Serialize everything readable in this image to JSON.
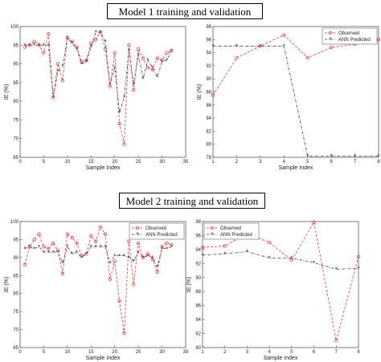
{
  "sections": [
    {
      "title": "Model 1 training and validation"
    },
    {
      "title": "Model 2 training and validation"
    }
  ],
  "colors": {
    "observed": "#e8303a",
    "predicted": "#333333"
  },
  "chart_data": [
    {
      "id": "m1-train",
      "type": "line",
      "xlabel": "Sample Index",
      "ylabel": "IE (%)",
      "xlim": [
        0,
        35
      ],
      "ylim": [
        65,
        100
      ],
      "xticks": [
        0,
        5,
        10,
        15,
        20,
        25,
        30,
        35
      ],
      "yticks": [
        65,
        70,
        75,
        80,
        85,
        90,
        95,
        100
      ],
      "x": [
        1,
        2,
        3,
        4,
        5,
        6,
        7,
        8,
        9,
        10,
        11,
        12,
        13,
        14,
        15,
        16,
        17,
        18,
        19,
        20,
        21,
        22,
        23,
        24,
        25,
        26,
        27,
        28,
        29,
        30,
        31,
        32
      ],
      "series": [
        {
          "name": "Observed",
          "values": [
            94.5,
            95,
            96,
            95,
            93,
            98,
            81,
            90,
            85.5,
            97,
            96,
            94.5,
            90.5,
            91,
            95.5,
            96.5,
            98.5,
            94,
            84,
            93,
            74,
            68.5,
            95,
            83,
            94,
            91.5,
            89,
            88.5,
            91.5,
            91,
            93,
            93.5
          ]
        },
        {
          "name": "ANN Predicted",
          "values": [
            95,
            95,
            95,
            95,
            95,
            95,
            81,
            88,
            89.5,
            97,
            95.5,
            94,
            90,
            90.5,
            94.5,
            98.5,
            98.5,
            96,
            84.5,
            89,
            77,
            81,
            93.5,
            84.5,
            92.5,
            86,
            91,
            89,
            86.5,
            90.5,
            91,
            93.5
          ]
        }
      ]
    },
    {
      "id": "m1-val",
      "type": "line",
      "xlabel": "Sample Index",
      "ylabel": "IE (%)",
      "xlim": [
        1,
        8
      ],
      "ylim": [
        78,
        98
      ],
      "xticks": [
        1,
        2,
        3,
        4,
        5,
        6,
        7,
        8
      ],
      "yticks": [
        78,
        80,
        82,
        84,
        86,
        88,
        90,
        92,
        94,
        96,
        98
      ],
      "legend": "top-right",
      "x": [
        1,
        2,
        3,
        4,
        5,
        6,
        7,
        8
      ],
      "series": [
        {
          "name": "Observed",
          "values": [
            87.5,
            93.2,
            95,
            96.7,
            93.2,
            94.8,
            95.3,
            96
          ]
        },
        {
          "name": "ANN Predicted",
          "values": [
            95,
            95,
            95,
            95,
            78.2,
            78.2,
            78.2,
            78.2
          ]
        }
      ]
    },
    {
      "id": "m2-train",
      "type": "line",
      "xlabel": "Sample Index",
      "ylabel": "IE (%)",
      "xlim": [
        0,
        35
      ],
      "ylim": [
        65,
        100
      ],
      "xticks": [
        0,
        5,
        10,
        15,
        20,
        25,
        30,
        35
      ],
      "yticks": [
        65,
        70,
        75,
        80,
        85,
        90,
        95,
        100
      ],
      "legend": "top-right",
      "x": [
        1,
        2,
        3,
        4,
        5,
        6,
        7,
        8,
        9,
        10,
        11,
        12,
        13,
        14,
        15,
        16,
        17,
        18,
        19,
        20,
        21,
        22,
        23,
        24,
        25,
        26,
        27,
        28,
        29,
        30,
        31,
        32
      ],
      "series": [
        {
          "name": "Observed",
          "values": [
            88,
            93,
            95,
            96.5,
            93,
            92.5,
            94,
            92,
            85.5,
            96.5,
            95.5,
            94,
            90.5,
            91,
            96,
            94.5,
            98.5,
            96.5,
            84,
            89,
            78,
            69,
            94.5,
            82.5,
            94,
            90,
            91,
            89.5,
            86,
            93,
            94,
            93.5
          ]
        },
        {
          "name": "ANN Predicted",
          "values": [
            92.5,
            93,
            92.5,
            93,
            91.5,
            91.5,
            91.5,
            91.5,
            88.5,
            93,
            91,
            91.5,
            90,
            91,
            93,
            93,
            93,
            93,
            88.5,
            90.5,
            90.5,
            90.5,
            90,
            89,
            91.5,
            90,
            90.5,
            90,
            87.5,
            92.5,
            92.5,
            93
          ]
        }
      ]
    },
    {
      "id": "m2-val",
      "type": "line",
      "xlabel": "Sample Index",
      "ylabel": "IE (%)",
      "xlim": [
        1,
        8
      ],
      "ylim": [
        80,
        98
      ],
      "xticks": [
        1,
        2,
        3,
        4,
        5,
        6,
        7,
        8
      ],
      "yticks": [
        80,
        82,
        84,
        86,
        88,
        90,
        92,
        94,
        96,
        98
      ],
      "legend": "top-left",
      "x": [
        1,
        2,
        3,
        4,
        5,
        6,
        7,
        8
      ],
      "series": [
        {
          "name": "Observed",
          "values": [
            94.3,
            94.5,
            96.3,
            95,
            92.5,
            97.9,
            81,
            93
          ]
        },
        {
          "name": "ANN Predicted",
          "values": [
            93.2,
            93.4,
            93.7,
            92.8,
            92.8,
            92.1,
            91.2,
            91.3
          ]
        }
      ]
    }
  ]
}
